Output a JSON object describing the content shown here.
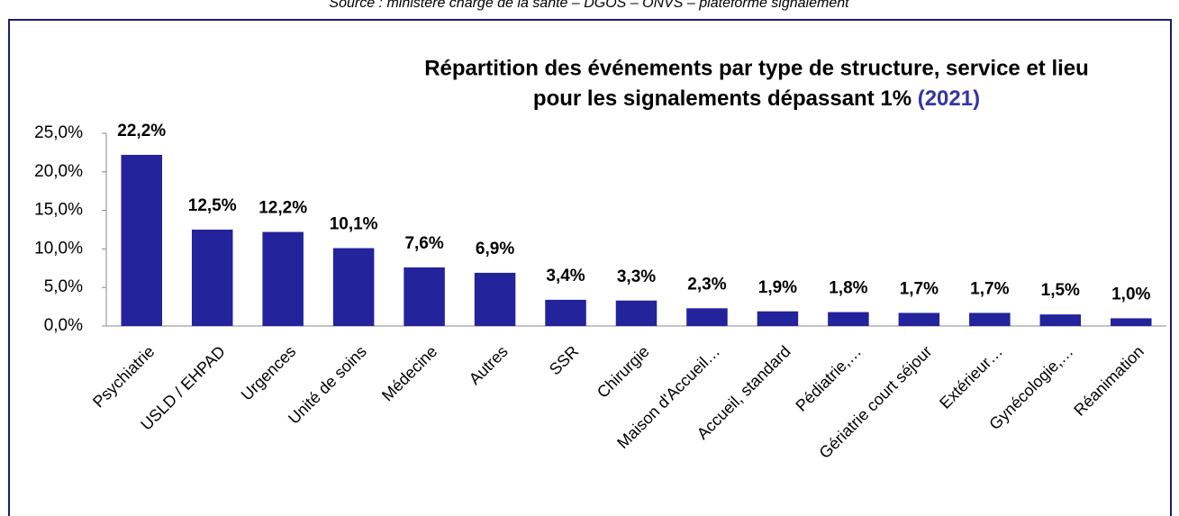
{
  "chart_data": {
    "type": "bar",
    "source": "Source : ministère chargé de la santé – DGOS – ONVS – plateforme signalement",
    "title_lines": [
      "Répartition des événements par type de structure, service et lieu",
      "pour les signalements dépassant 1%"
    ],
    "title_year": "(2021)",
    "categories": [
      "Psychiatrie",
      "USLD / EHPAD",
      "Urgences",
      "Unité de soins",
      "Médecine",
      "Autres",
      "SSR",
      "Chirurgie",
      "Maison d'Accueil…",
      "Accueil, standard",
      "Pédiatrie,…",
      "Gériatrie court séjour",
      "Extérieur…",
      "Gynécologie,…",
      "Réanimation"
    ],
    "values": [
      22.2,
      12.5,
      12.2,
      10.1,
      7.6,
      6.9,
      3.4,
      3.3,
      2.3,
      1.9,
      1.8,
      1.7,
      1.7,
      1.5,
      1.0
    ],
    "value_labels": [
      "22,2%",
      "12,5%",
      "12,2%",
      "10,1%",
      "7,6%",
      "6,9%",
      "3,4%",
      "3,3%",
      "2,3%",
      "1,9%",
      "1,8%",
      "1,7%",
      "1,7%",
      "1,5%",
      "1,0%"
    ],
    "color": "#23239b",
    "year_color": "#3535a5",
    "ylim": [
      0,
      25
    ],
    "yticks": [
      {
        "value": 0,
        "label": "0,0%"
      },
      {
        "value": 5,
        "label": "5,0%"
      },
      {
        "value": 10,
        "label": "10,0%"
      },
      {
        "value": 15,
        "label": "15,0%"
      },
      {
        "value": 20,
        "label": "20,0%"
      },
      {
        "value": 25,
        "label": "25,0%"
      }
    ]
  }
}
